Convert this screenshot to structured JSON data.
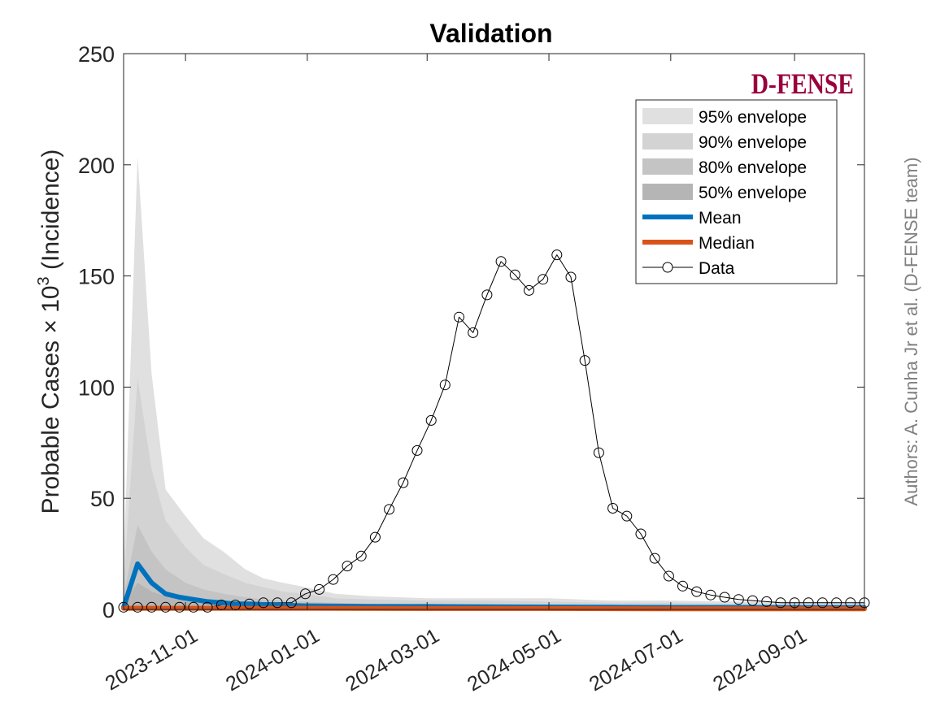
{
  "chart_data": {
    "type": "line",
    "title": "Validation",
    "ylabel": {
      "prefix": "Probable Cases × 10",
      "exponent": "3",
      "suffix": " (Incidence)"
    },
    "xlabel": "",
    "ylim": [
      0,
      250
    ],
    "yticks": [
      "0",
      "50",
      "100",
      "150",
      "200",
      "250"
    ],
    "xticks": [
      "2023-11-01",
      "2024-01-01",
      "2024-03-01",
      "2024-05-01",
      "2024-07-01",
      "2024-09-01"
    ],
    "x_start": "2023-10-01",
    "x_end": "2024-10-06",
    "grid": false,
    "legend_position": "top-right",
    "legend": {
      "env95": "95% envelope",
      "env90": "90% envelope",
      "env80": "80% envelope",
      "env50": "50% envelope",
      "mean": "Mean",
      "median": "Median",
      "data": "Data"
    },
    "series": [
      {
        "name": "Data",
        "x": [
          "2023-10-01",
          "2023-10-08",
          "2023-10-15",
          "2023-10-22",
          "2023-10-29",
          "2023-11-05",
          "2023-11-12",
          "2023-11-19",
          "2023-11-26",
          "2023-12-03",
          "2023-12-10",
          "2023-12-17",
          "2023-12-24",
          "2023-12-31",
          "2024-01-07",
          "2024-01-14",
          "2024-01-21",
          "2024-01-28",
          "2024-02-04",
          "2024-02-11",
          "2024-02-18",
          "2024-02-25",
          "2024-03-03",
          "2024-03-10",
          "2024-03-17",
          "2024-03-24",
          "2024-03-31",
          "2024-04-07",
          "2024-04-14",
          "2024-04-21",
          "2024-04-28",
          "2024-05-05",
          "2024-05-12",
          "2024-05-19",
          "2024-05-26",
          "2024-06-02",
          "2024-06-09",
          "2024-06-16",
          "2024-06-23",
          "2024-06-30",
          "2024-07-07",
          "2024-07-14",
          "2024-07-21",
          "2024-07-28",
          "2024-08-04",
          "2024-08-11",
          "2024-08-18",
          "2024-08-25",
          "2024-09-01",
          "2024-09-08",
          "2024-09-15",
          "2024-09-22",
          "2024-09-29",
          "2024-10-06"
        ],
        "values": [
          1,
          1,
          1,
          1,
          1,
          1,
          1,
          2,
          2,
          2.5,
          3,
          3,
          3,
          7,
          9,
          13.5,
          19.5,
          24,
          32.5,
          45,
          57,
          71.5,
          85,
          101,
          131.5,
          124.5,
          141.5,
          156.5,
          150.5,
          143.5,
          148.5,
          159.5,
          149.5,
          112,
          70.5,
          45.5,
          42,
          34,
          23,
          15,
          10.5,
          8,
          6.5,
          5.5,
          4.5,
          4,
          3.5,
          3,
          3,
          3,
          3,
          3,
          3,
          3
        ]
      },
      {
        "name": "Mean",
        "x": [
          "2023-10-01",
          "2023-10-08",
          "2023-10-15",
          "2023-10-22",
          "2023-10-29",
          "2023-11-05",
          "2023-11-12",
          "2023-11-19",
          "2023-11-26",
          "2023-12-03",
          "2023-12-10",
          "2023-12-17",
          "2023-12-24",
          "2023-12-31",
          "2024-02-01",
          "2024-03-01",
          "2024-04-01",
          "2024-05-01",
          "2024-06-01",
          "2024-07-01",
          "2024-08-01",
          "2024-09-01",
          "2024-10-06"
        ],
        "values": [
          1,
          20.5,
          12,
          7,
          5.5,
          4.5,
          3.5,
          3,
          2.5,
          2.5,
          2.2,
          2,
          1.8,
          1.6,
          1.4,
          1.3,
          1.2,
          1.1,
          1.0,
          0.9,
          0.9,
          0.8,
          0.8
        ]
      },
      {
        "name": "Median",
        "x": [
          "2023-10-01",
          "2023-10-08",
          "2023-10-15",
          "2023-11-01",
          "2023-12-01",
          "2024-01-01",
          "2024-03-01",
          "2024-05-01",
          "2024-07-01",
          "2024-09-01",
          "2024-10-06"
        ],
        "values": [
          0.5,
          0.5,
          0.5,
          0.5,
          0.5,
          0.5,
          0.4,
          0.4,
          0.3,
          0.3,
          0.3
        ]
      }
    ],
    "envelopes": [
      {
        "name": "95% envelope",
        "color": "#e0e0e0",
        "x": [
          "2023-10-01",
          "2023-10-08",
          "2023-10-15",
          "2023-10-22",
          "2023-11-01",
          "2023-11-10",
          "2023-11-20",
          "2023-12-01",
          "2023-12-10",
          "2023-12-20",
          "2023-12-31",
          "2024-01-15",
          "2024-02-01",
          "2024-03-01",
          "2024-04-01",
          "2024-05-01",
          "2024-06-01",
          "2024-07-01",
          "2024-08-01",
          "2024-09-01",
          "2024-10-06"
        ],
        "upper": [
          20,
          204,
          106,
          54,
          42,
          32,
          26,
          18,
          14,
          12,
          10,
          7,
          6,
          5,
          5,
          5,
          4,
          4,
          3.5,
          3.5,
          3
        ],
        "lower": [
          0,
          0,
          0,
          0,
          0,
          0,
          0,
          0,
          0,
          0,
          0,
          0,
          0,
          0,
          0,
          0,
          0,
          0,
          0,
          0,
          0
        ]
      },
      {
        "name": "90% envelope",
        "color": "#d3d3d3",
        "x": [
          "2023-10-01",
          "2023-10-08",
          "2023-10-15",
          "2023-10-22",
          "2023-11-01",
          "2023-11-10",
          "2023-11-20",
          "2023-12-01",
          "2023-12-10",
          "2023-12-20",
          "2023-12-31",
          "2024-01-15",
          "2024-02-01",
          "2024-03-01",
          "2024-04-01",
          "2024-05-01",
          "2024-06-01",
          "2024-07-01",
          "2024-08-01",
          "2024-09-01",
          "2024-10-06"
        ],
        "upper": [
          12,
          104,
          63,
          40,
          28,
          20,
          16,
          12,
          10,
          8,
          7,
          5,
          4.5,
          4,
          4,
          3.5,
          3,
          3,
          2.5,
          2.5,
          2.5
        ],
        "lower": [
          0,
          0,
          0,
          0,
          0,
          0,
          0,
          0,
          0,
          0,
          0,
          0,
          0,
          0,
          0,
          0,
          0,
          0,
          0,
          0,
          0
        ]
      },
      {
        "name": "80% envelope",
        "color": "#c4c4c4",
        "x": [
          "2023-10-01",
          "2023-10-08",
          "2023-10-15",
          "2023-10-22",
          "2023-11-01",
          "2023-11-10",
          "2023-11-20",
          "2023-12-01",
          "2023-12-10",
          "2023-12-20",
          "2023-12-31",
          "2024-01-15",
          "2024-02-01",
          "2024-03-01",
          "2024-04-01",
          "2024-05-01",
          "2024-06-01",
          "2024-07-01",
          "2024-08-01",
          "2024-09-01",
          "2024-10-06"
        ],
        "upper": [
          6,
          38,
          26,
          18,
          12,
          9,
          7,
          5.5,
          4.5,
          4,
          3.5,
          3,
          2.5,
          2.5,
          2.2,
          2,
          2,
          1.8,
          1.6,
          1.5,
          1.5
        ],
        "lower": [
          0,
          0,
          0,
          0,
          0,
          0,
          0,
          0,
          0,
          0,
          0,
          0,
          0,
          0,
          0,
          0,
          0,
          0,
          0,
          0,
          0
        ]
      },
      {
        "name": "50% envelope",
        "color": "#b5b5b5",
        "x": [
          "2023-10-01",
          "2023-10-08",
          "2023-10-15",
          "2023-10-22",
          "2023-11-01",
          "2023-11-10",
          "2023-11-20",
          "2023-12-01",
          "2023-12-10",
          "2023-12-20",
          "2023-12-31",
          "2024-01-15",
          "2024-02-01",
          "2024-03-01",
          "2024-04-01",
          "2024-05-01",
          "2024-06-01",
          "2024-07-01",
          "2024-08-01",
          "2024-09-01",
          "2024-10-06"
        ],
        "upper": [
          3,
          12,
          8,
          6,
          4.5,
          3.5,
          3,
          2.5,
          2.2,
          2,
          1.8,
          1.6,
          1.5,
          1.4,
          1.3,
          1.2,
          1.1,
          1,
          1,
          0.9,
          0.9
        ],
        "lower": [
          0,
          0,
          0,
          0,
          0,
          0,
          0,
          0,
          0,
          0,
          0,
          0,
          0,
          0,
          0,
          0,
          0,
          0,
          0,
          0,
          0
        ]
      }
    ]
  },
  "logo": "D-FENSE",
  "side_note": "Authors: A. Cunha Jr et al. (D-FENSE team)",
  "colors": {
    "mean": "#0072BD",
    "median": "#D95319",
    "data": "#000000",
    "logo": "#99003d",
    "side_note": "#808080"
  }
}
